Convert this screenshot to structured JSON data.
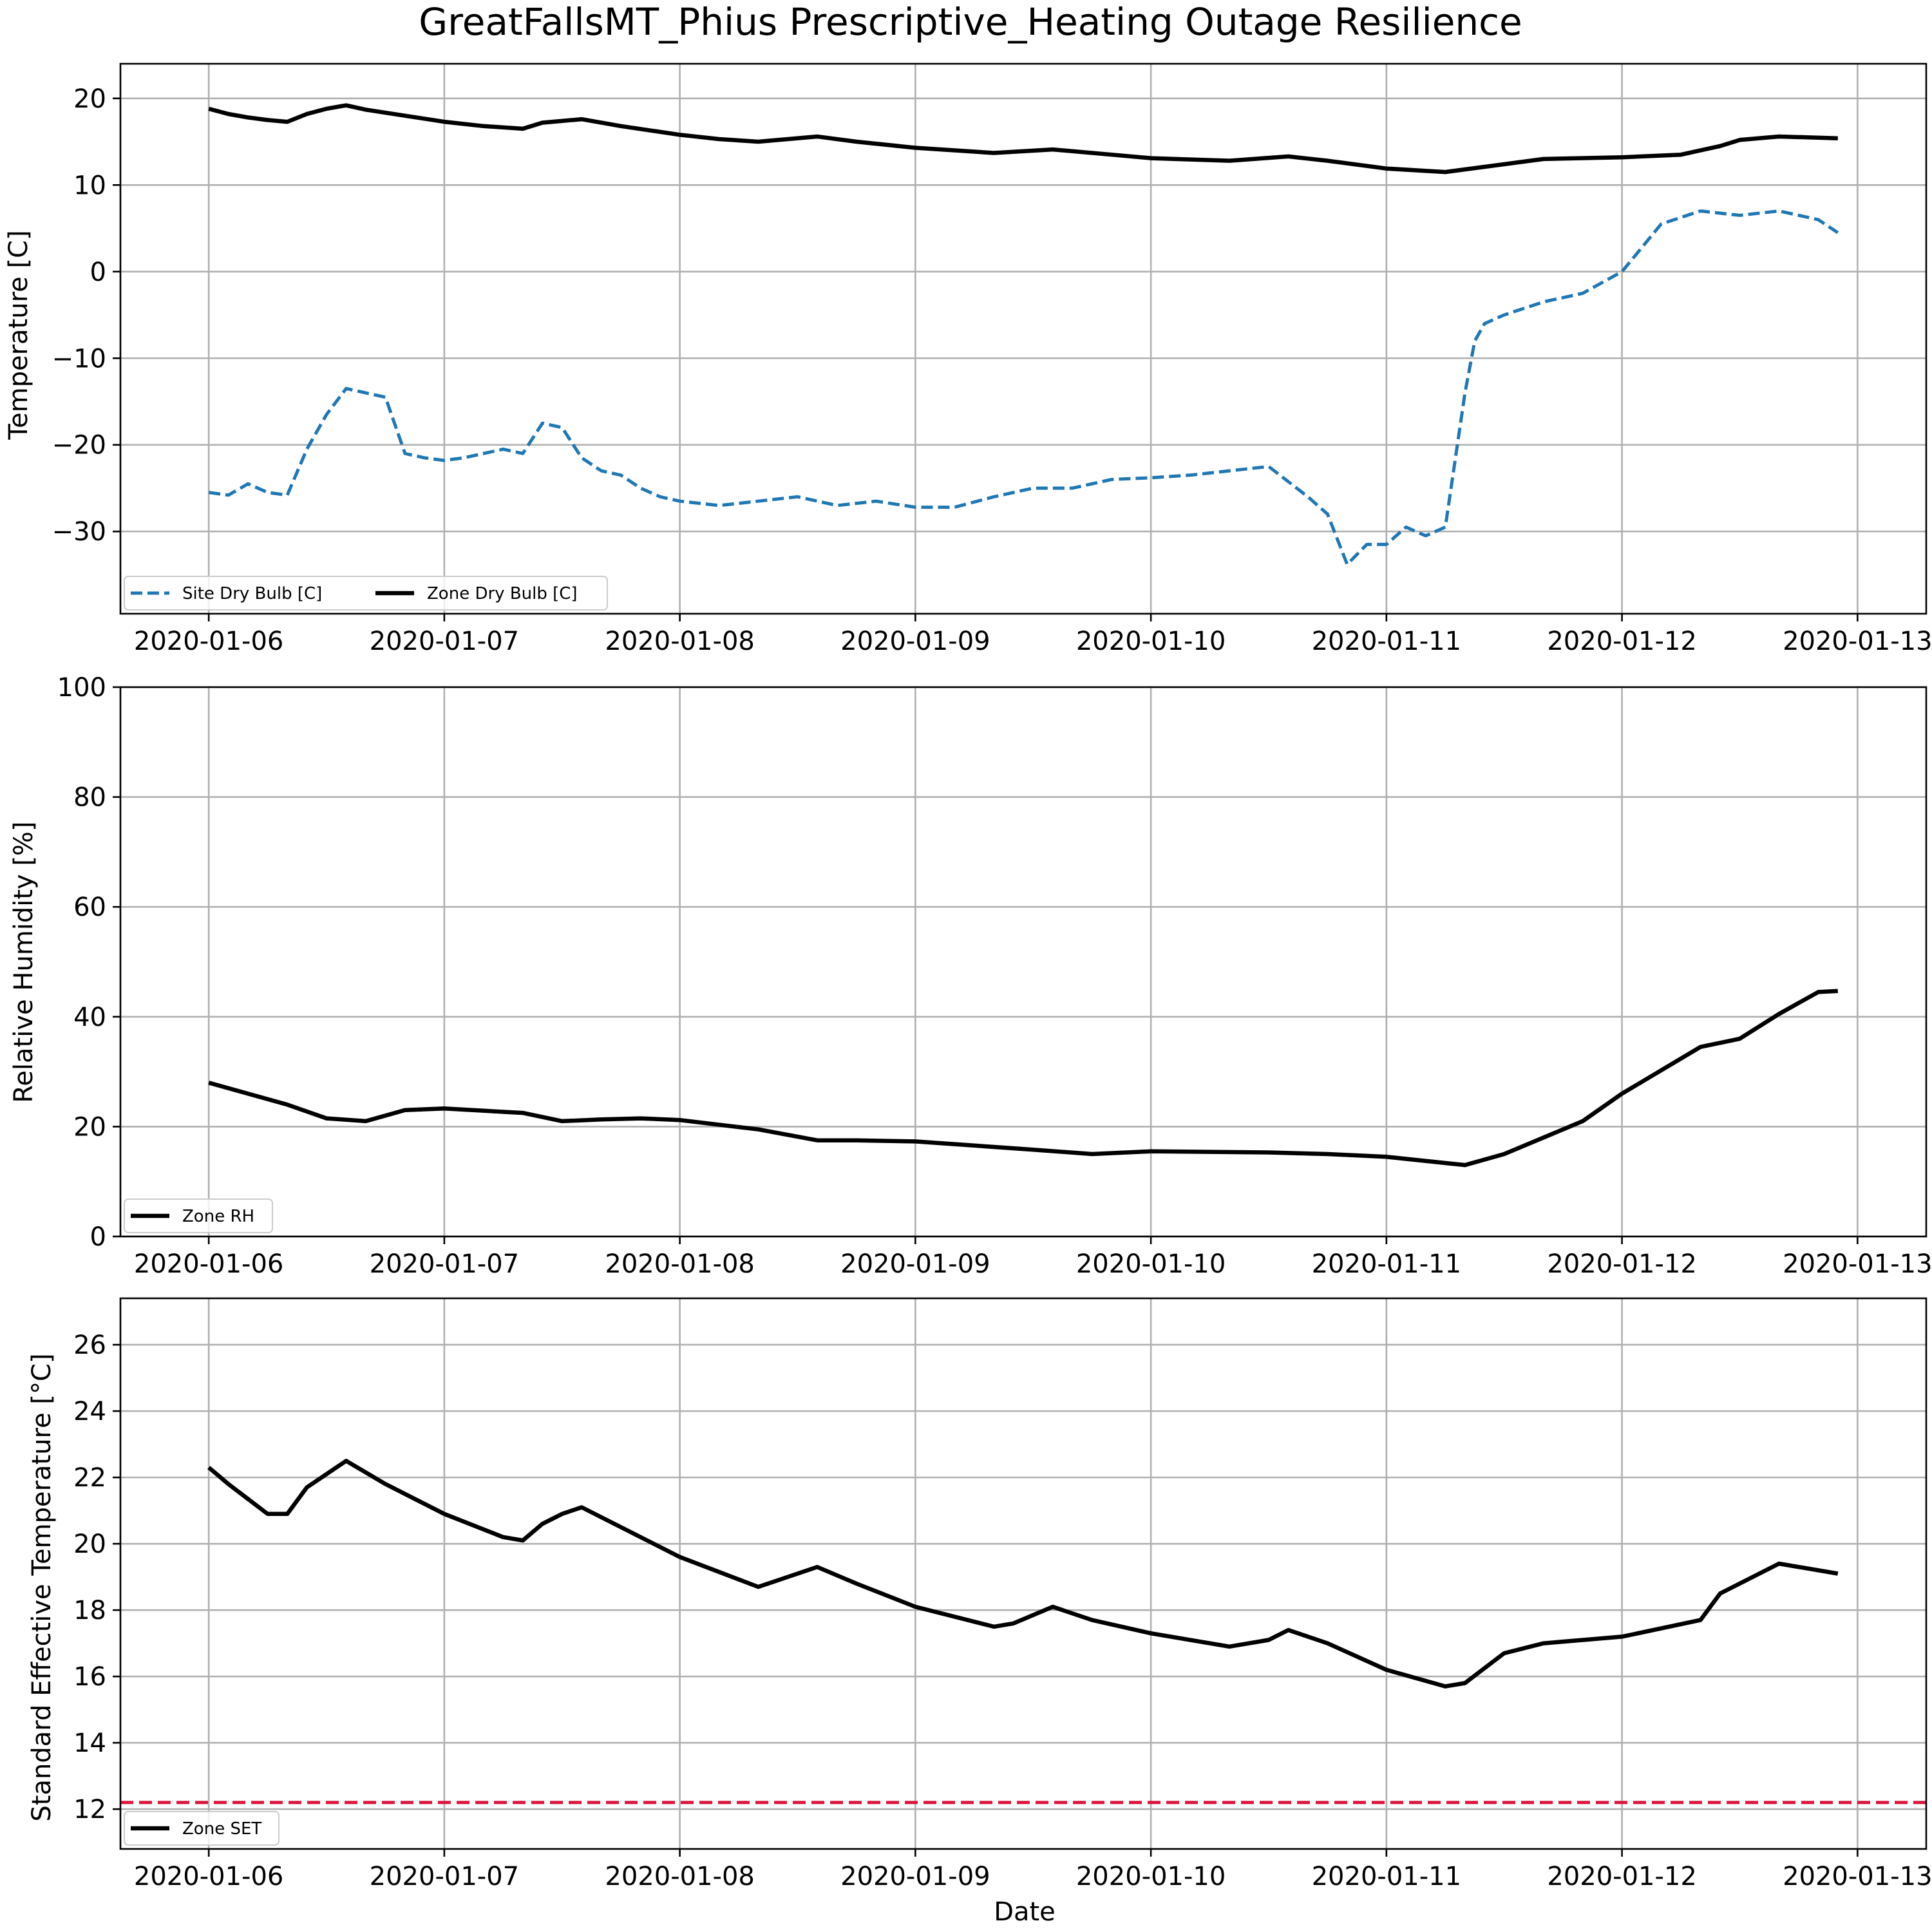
{
  "figure": {
    "title": "GreatFallsMT_Phius Prescriptive_Heating Outage Resilience"
  },
  "colors": {
    "site_dry_bulb": "#1f77b4",
    "zone_line": "#000000",
    "set_threshold": "#dc143c",
    "grid": "#b0b0b0"
  },
  "chart_data": [
    {
      "type": "line",
      "ylabel": "Temperature [C]",
      "xlabel": "",
      "x_ticks": [
        "2020-01-06",
        "2020-01-07",
        "2020-01-08",
        "2020-01-09",
        "2020-01-10",
        "2020-01-11",
        "2020-01-12",
        "2020-01-13"
      ],
      "x_range": [
        "2020-01-05T15:00",
        "2020-01-13T07:00"
      ],
      "ylim": [
        -39.5,
        24.0
      ],
      "y_ticks": [
        20,
        10,
        0,
        -10,
        -20,
        -30
      ],
      "y_tick_labels": [
        "20",
        "10",
        "0",
        "−10",
        "−20",
        "−30"
      ],
      "grid": true,
      "legend": {
        "placement": "lower-left",
        "columns": 2
      },
      "series": [
        {
          "name": "Site Dry Bulb [C]",
          "style": "dashed",
          "color": "#1f77b4",
          "x": [
            "2020-01-06T00:00",
            "2020-01-06T02:00",
            "2020-01-06T04:00",
            "2020-01-06T06:00",
            "2020-01-06T08:00",
            "2020-01-06T10:00",
            "2020-01-06T12:00",
            "2020-01-06T14:00",
            "2020-01-06T16:00",
            "2020-01-06T18:00",
            "2020-01-06T20:00",
            "2020-01-06T22:00",
            "2020-01-07T00:00",
            "2020-01-07T02:00",
            "2020-01-07T04:00",
            "2020-01-07T06:00",
            "2020-01-07T08:00",
            "2020-01-07T10:00",
            "2020-01-07T12:00",
            "2020-01-07T14:00",
            "2020-01-07T16:00",
            "2020-01-07T18:00",
            "2020-01-07T20:00",
            "2020-01-07T22:00",
            "2020-01-08T00:00",
            "2020-01-08T04:00",
            "2020-01-08T08:00",
            "2020-01-08T12:00",
            "2020-01-08T16:00",
            "2020-01-08T20:00",
            "2020-01-09T00:00",
            "2020-01-09T04:00",
            "2020-01-09T08:00",
            "2020-01-09T12:00",
            "2020-01-09T16:00",
            "2020-01-09T20:00",
            "2020-01-10T00:00",
            "2020-01-10T04:00",
            "2020-01-10T08:00",
            "2020-01-10T12:00",
            "2020-01-10T16:00",
            "2020-01-10T18:00",
            "2020-01-10T20:00",
            "2020-01-10T22:00",
            "2020-01-11T00:00",
            "2020-01-11T02:00",
            "2020-01-11T04:00",
            "2020-01-11T06:00",
            "2020-01-11T08:00",
            "2020-01-11T09:00",
            "2020-01-11T10:00",
            "2020-01-11T12:00",
            "2020-01-11T16:00",
            "2020-01-11T20:00",
            "2020-01-12T00:00",
            "2020-01-12T04:00",
            "2020-01-12T08:00",
            "2020-01-12T12:00",
            "2020-01-12T16:00",
            "2020-01-12T20:00",
            "2020-01-12T22:00"
          ],
          "y": [
            -25.5,
            -25.8,
            -24.5,
            -25.5,
            -25.8,
            -20.5,
            -16.5,
            -13.5,
            -14.0,
            -14.5,
            -21.0,
            -21.5,
            -21.8,
            -21.5,
            -21.0,
            -20.5,
            -21.0,
            -17.5,
            -18.0,
            -21.5,
            -23.0,
            -23.5,
            -25.0,
            -26.0,
            -26.5,
            -27.0,
            -26.5,
            -26.0,
            -27.0,
            -26.5,
            -27.2,
            -27.2,
            -26.0,
            -25.0,
            -25.0,
            -24.0,
            -23.8,
            -23.5,
            -23.0,
            -22.5,
            -26.0,
            -28.0,
            -33.8,
            -31.5,
            -31.5,
            -29.5,
            -30.5,
            -29.5,
            -14.0,
            -8.0,
            -6.0,
            -5.0,
            -3.5,
            -2.5,
            0.0,
            5.5,
            7.0,
            6.5,
            7.0,
            6.0,
            4.5
          ]
        },
        {
          "name": "Zone Dry Bulb [C]",
          "style": "solid",
          "color": "#000000",
          "x": [
            "2020-01-06T00:00",
            "2020-01-06T02:00",
            "2020-01-06T04:00",
            "2020-01-06T06:00",
            "2020-01-06T08:00",
            "2020-01-06T10:00",
            "2020-01-06T12:00",
            "2020-01-06T14:00",
            "2020-01-06T16:00",
            "2020-01-06T20:00",
            "2020-01-07T00:00",
            "2020-01-07T04:00",
            "2020-01-07T08:00",
            "2020-01-07T10:00",
            "2020-01-07T14:00",
            "2020-01-07T18:00",
            "2020-01-08T00:00",
            "2020-01-08T04:00",
            "2020-01-08T08:00",
            "2020-01-08T14:00",
            "2020-01-08T18:00",
            "2020-01-09T00:00",
            "2020-01-09T08:00",
            "2020-01-09T14:00",
            "2020-01-09T20:00",
            "2020-01-10T00:00",
            "2020-01-10T08:00",
            "2020-01-10T14:00",
            "2020-01-10T18:00",
            "2020-01-11T00:00",
            "2020-01-11T06:00",
            "2020-01-11T12:00",
            "2020-01-11T16:00",
            "2020-01-12T00:00",
            "2020-01-12T06:00",
            "2020-01-12T10:00",
            "2020-01-12T12:00",
            "2020-01-12T16:00",
            "2020-01-12T22:00"
          ],
          "y": [
            18.8,
            18.2,
            17.8,
            17.5,
            17.3,
            18.2,
            18.8,
            19.2,
            18.7,
            18.0,
            17.3,
            16.8,
            16.5,
            17.2,
            17.6,
            16.8,
            15.8,
            15.3,
            15.0,
            15.6,
            15.0,
            14.3,
            13.7,
            14.1,
            13.5,
            13.1,
            12.8,
            13.3,
            12.8,
            11.9,
            11.5,
            12.4,
            13.0,
            13.2,
            13.5,
            14.5,
            15.2,
            15.6,
            15.4
          ]
        }
      ]
    },
    {
      "type": "line",
      "ylabel": "Relative Humidity [%]",
      "xlabel": "",
      "x_ticks": [
        "2020-01-06",
        "2020-01-07",
        "2020-01-08",
        "2020-01-09",
        "2020-01-10",
        "2020-01-11",
        "2020-01-12",
        "2020-01-13"
      ],
      "x_range": [
        "2020-01-05T15:00",
        "2020-01-13T07:00"
      ],
      "ylim": [
        0,
        100
      ],
      "y_ticks": [
        0,
        20,
        40,
        60,
        80,
        100
      ],
      "y_tick_labels": [
        "0",
        "20",
        "40",
        "60",
        "80",
        "100"
      ],
      "grid": true,
      "legend": {
        "placement": "lower-left",
        "columns": 1
      },
      "series": [
        {
          "name": "Zone RH",
          "style": "solid",
          "color": "#000000",
          "x": [
            "2020-01-06T00:00",
            "2020-01-06T04:00",
            "2020-01-06T08:00",
            "2020-01-06T12:00",
            "2020-01-06T16:00",
            "2020-01-06T20:00",
            "2020-01-07T00:00",
            "2020-01-07T08:00",
            "2020-01-07T12:00",
            "2020-01-07T16:00",
            "2020-01-07T20:00",
            "2020-01-08T00:00",
            "2020-01-08T08:00",
            "2020-01-08T14:00",
            "2020-01-08T18:00",
            "2020-01-09T00:00",
            "2020-01-09T12:00",
            "2020-01-09T18:00",
            "2020-01-10T00:00",
            "2020-01-10T12:00",
            "2020-01-10T18:00",
            "2020-01-11T00:00",
            "2020-01-11T08:00",
            "2020-01-11T12:00",
            "2020-01-11T20:00",
            "2020-01-12T00:00",
            "2020-01-12T08:00",
            "2020-01-12T12:00",
            "2020-01-12T16:00",
            "2020-01-12T20:00",
            "2020-01-12T22:00"
          ],
          "y": [
            28.0,
            26.0,
            24.0,
            21.5,
            21.0,
            23.0,
            23.3,
            22.5,
            21.0,
            21.3,
            21.5,
            21.2,
            19.5,
            17.5,
            17.5,
            17.3,
            15.8,
            15.0,
            15.5,
            15.3,
            15.0,
            14.5,
            13.0,
            15.0,
            21.0,
            26.0,
            34.5,
            36.0,
            40.5,
            44.5,
            44.7
          ]
        }
      ]
    },
    {
      "type": "line",
      "ylabel": "Standard Effective Temperature [°C]",
      "xlabel": "Date",
      "x_ticks": [
        "2020-01-06",
        "2020-01-07",
        "2020-01-08",
        "2020-01-09",
        "2020-01-10",
        "2020-01-11",
        "2020-01-12",
        "2020-01-13"
      ],
      "x_range": [
        "2020-01-05T15:00",
        "2020-01-13T07:00"
      ],
      "ylim": [
        10.8,
        27.4
      ],
      "y_ticks": [
        12,
        14,
        16,
        18,
        20,
        22,
        24,
        26
      ],
      "y_tick_labels": [
        "12",
        "14",
        "16",
        "18",
        "20",
        "22",
        "24",
        "26"
      ],
      "grid": true,
      "legend": {
        "placement": "lower-left",
        "columns": 1
      },
      "threshold": {
        "y": 12.2,
        "style": "dashed",
        "color": "#dc143c"
      },
      "series": [
        {
          "name": "Zone SET",
          "style": "solid",
          "color": "#000000",
          "x": [
            "2020-01-06T00:00",
            "2020-01-06T02:00",
            "2020-01-06T06:00",
            "2020-01-06T08:00",
            "2020-01-06T10:00",
            "2020-01-06T14:00",
            "2020-01-06T18:00",
            "2020-01-07T00:00",
            "2020-01-07T06:00",
            "2020-01-07T08:00",
            "2020-01-07T10:00",
            "2020-01-07T12:00",
            "2020-01-07T14:00",
            "2020-01-08T00:00",
            "2020-01-08T08:00",
            "2020-01-08T10:00",
            "2020-01-08T14:00",
            "2020-01-08T18:00",
            "2020-01-09T00:00",
            "2020-01-09T08:00",
            "2020-01-09T10:00",
            "2020-01-09T14:00",
            "2020-01-09T18:00",
            "2020-01-10T00:00",
            "2020-01-10T08:00",
            "2020-01-10T12:00",
            "2020-01-10T14:00",
            "2020-01-10T18:00",
            "2020-01-11T00:00",
            "2020-01-11T06:00",
            "2020-01-11T08:00",
            "2020-01-11T12:00",
            "2020-01-11T16:00",
            "2020-01-12T00:00",
            "2020-01-12T08:00",
            "2020-01-12T10:00",
            "2020-01-12T16:00",
            "2020-01-12T22:00"
          ],
          "y": [
            22.3,
            21.8,
            20.9,
            20.9,
            21.7,
            22.5,
            21.8,
            20.9,
            20.2,
            20.1,
            20.6,
            20.9,
            21.1,
            19.6,
            18.7,
            18.9,
            19.3,
            18.8,
            18.1,
            17.5,
            17.6,
            18.1,
            17.7,
            17.3,
            16.9,
            17.1,
            17.4,
            17.0,
            16.2,
            15.7,
            15.8,
            16.7,
            17.0,
            17.2,
            17.7,
            18.5,
            19.4,
            19.1
          ]
        }
      ]
    }
  ]
}
